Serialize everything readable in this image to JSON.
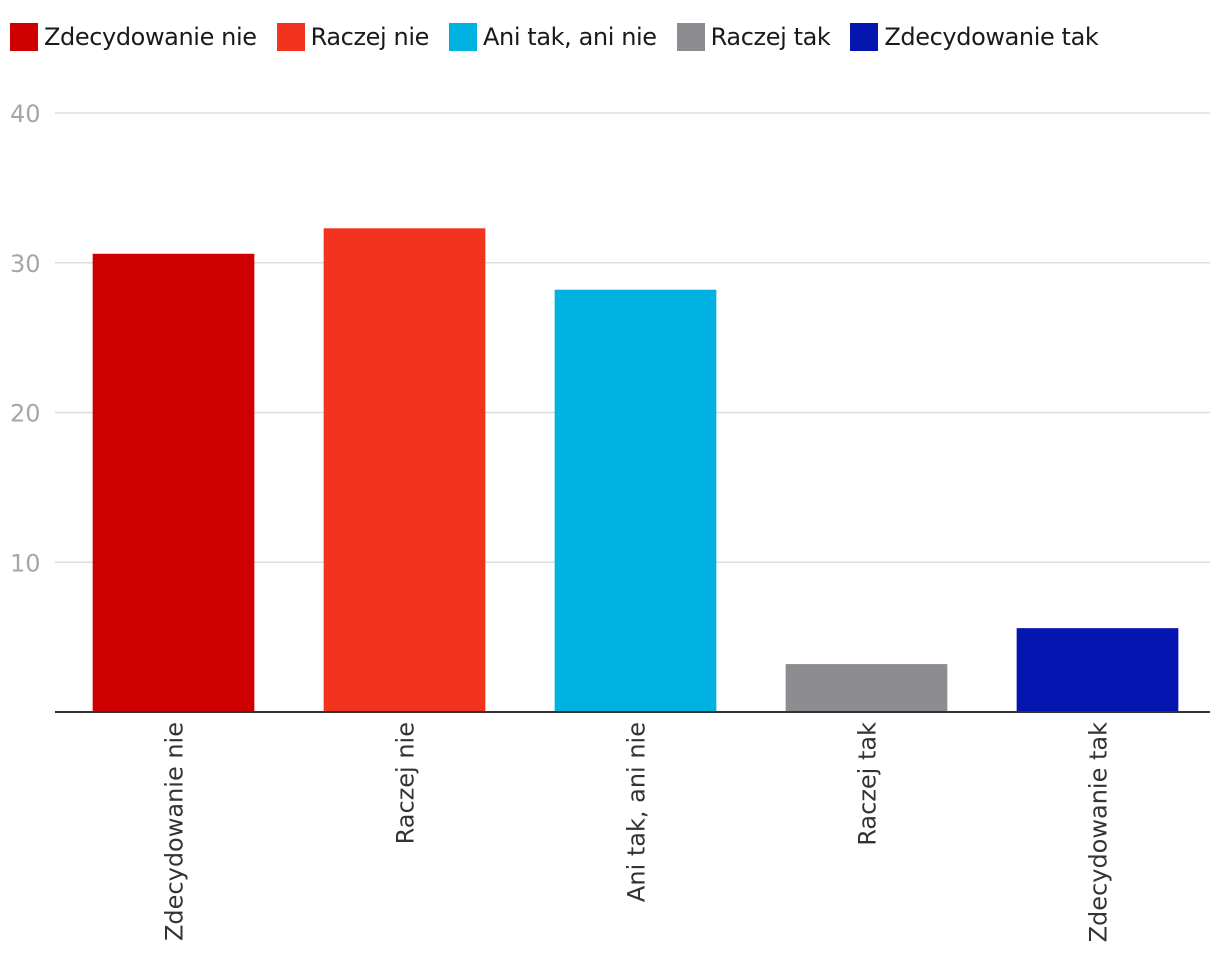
{
  "chart_data": {
    "type": "bar",
    "title": "",
    "xlabel": "",
    "ylabel": "",
    "categories": [
      "Zdecydowanie nie",
      "Raczej nie",
      "Ani tak, ani nie",
      "Raczej tak",
      "Zdecydowanie tak"
    ],
    "values": [
      30.6,
      32.3,
      28.2,
      3.2,
      5.6
    ],
    "colors": [
      "#d10000",
      "#f2341e",
      "#00b2e2",
      "#8c8c91",
      "#0515b0"
    ],
    "ylim": [
      0,
      40
    ],
    "yticks": [
      10,
      20,
      30,
      40
    ],
    "grid": true,
    "legend_position": "top-left"
  },
  "colors": {
    "axis": "#333333",
    "grid": "#dddddd",
    "tick_label": "#a6a6a6",
    "category_label": "#333333"
  }
}
